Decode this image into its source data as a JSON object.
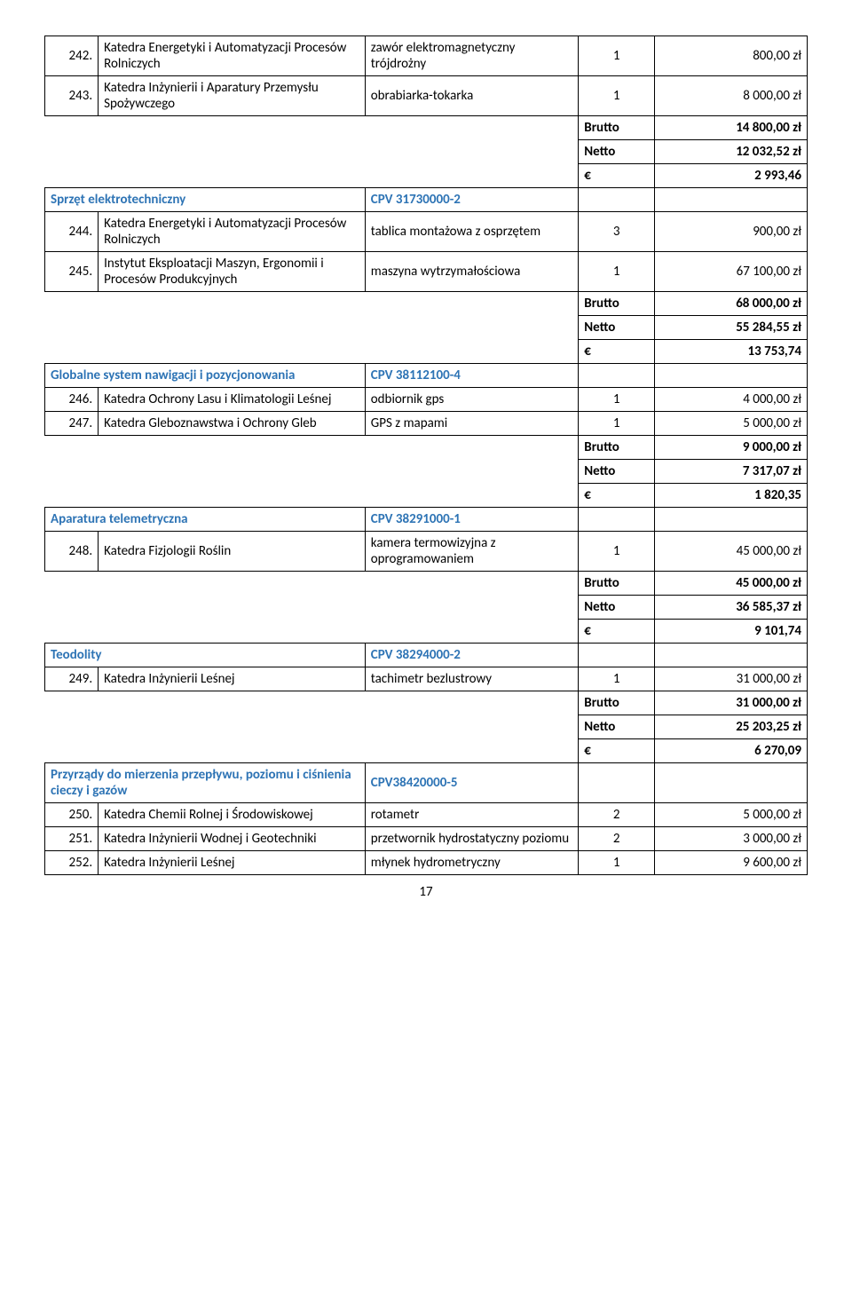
{
  "pageNumber": "17",
  "rows": [
    {
      "type": "item",
      "num": "242.",
      "dept": "Katedra Energetyki i Automatyzacji Procesów Rolniczych",
      "item": "zawór elektromagnetyczny trójdrożny",
      "qty": "1",
      "price": "800,00 zł"
    },
    {
      "type": "item",
      "num": "243.",
      "dept": "Katedra Inżynierii i Aparatury Przemysłu Spożywczego",
      "item": "obrabiarka-tokarka",
      "qty": "1",
      "price": "8 000,00 zł"
    },
    {
      "type": "subtotal",
      "label": "Brutto",
      "value": "14 800,00 zł"
    },
    {
      "type": "subtotal",
      "label": "Netto",
      "value": "12 032,52 zł"
    },
    {
      "type": "subtotal",
      "label": "€",
      "value": "2 993,46"
    },
    {
      "type": "section",
      "title": "Sprzęt elektrotechniczny",
      "cpv": "CPV 31730000-2"
    },
    {
      "type": "item",
      "num": "244.",
      "dept": "Katedra Energetyki i Automatyzacji Procesów Rolniczych",
      "item": "tablica montażowa z osprzętem",
      "qty": "3",
      "price": "900,00 zł"
    },
    {
      "type": "item",
      "num": "245.",
      "dept": "Instytut Eksploatacji Maszyn, Ergonomii i Procesów Produkcyjnych",
      "item": "maszyna wytrzymałościowa",
      "qty": "1",
      "price": "67 100,00 zł"
    },
    {
      "type": "subtotal",
      "label": "Brutto",
      "value": "68 000,00 zł"
    },
    {
      "type": "subtotal",
      "label": "Netto",
      "value": "55 284,55 zł"
    },
    {
      "type": "subtotal",
      "label": "€",
      "value": "13 753,74"
    },
    {
      "type": "section",
      "title": "Globalne system nawigacji i pozycjonowania",
      "cpv": "CPV 38112100-4"
    },
    {
      "type": "item",
      "num": "246.",
      "dept": "Katedra Ochrony Lasu i Klimatologii Leśnej",
      "item": "odbiornik gps",
      "qty": "1",
      "price": "4 000,00 zł"
    },
    {
      "type": "item",
      "num": "247.",
      "dept": "Katedra Gleboznawstwa i Ochrony Gleb",
      "item": "GPS z mapami",
      "qty": "1",
      "price": "5 000,00 zł"
    },
    {
      "type": "subtotal",
      "label": "Brutto",
      "value": "9 000,00 zł"
    },
    {
      "type": "subtotal",
      "label": "Netto",
      "value": "7 317,07 zł"
    },
    {
      "type": "subtotal",
      "label": "€",
      "value": "1 820,35"
    },
    {
      "type": "section",
      "title": "Aparatura telemetryczna",
      "cpv": "CPV 38291000-1"
    },
    {
      "type": "item",
      "num": "248.",
      "dept": "Katedra Fizjologii Roślin",
      "item": "kamera termowizyjna z oprogramowaniem",
      "qty": "1",
      "price": "45 000,00 zł"
    },
    {
      "type": "subtotal",
      "label": "Brutto",
      "value": "45 000,00 zł"
    },
    {
      "type": "subtotal",
      "label": "Netto",
      "value": "36 585,37 zł"
    },
    {
      "type": "subtotal",
      "label": "€",
      "value": "9 101,74"
    },
    {
      "type": "section",
      "title": "Teodolity",
      "cpv": "CPV 38294000-2"
    },
    {
      "type": "item",
      "num": "249.",
      "dept": "Katedra Inżynierii Leśnej",
      "item": "tachimetr bezlustrowy",
      "qty": "1",
      "price": "31 000,00 zł"
    },
    {
      "type": "subtotal",
      "label": "Brutto",
      "value": "31 000,00 zł"
    },
    {
      "type": "subtotal",
      "label": "Netto",
      "value": "25 203,25 zł"
    },
    {
      "type": "subtotal",
      "label": "€",
      "value": "6 270,09"
    },
    {
      "type": "section",
      "title": "Przyrządy do mierzenia przepływu, poziomu i ciśnienia cieczy i gazów",
      "cpv": "CPV38420000-5"
    },
    {
      "type": "item",
      "num": "250.",
      "dept": "Katedra Chemii Rolnej i Środowiskowej",
      "item": "rotametr",
      "qty": "2",
      "price": "5 000,00 zł"
    },
    {
      "type": "item",
      "num": "251.",
      "dept": "Katedra Inżynierii Wodnej i Geotechniki",
      "item": "przetwornik hydrostatyczny poziomu",
      "qty": "2",
      "price": "3 000,00 zł"
    },
    {
      "type": "item",
      "num": "252.",
      "dept": "Katedra Inżynierii Leśnej",
      "item": "młynek hydrometryczny",
      "qty": "1",
      "price": "9 600,00 zł"
    }
  ]
}
